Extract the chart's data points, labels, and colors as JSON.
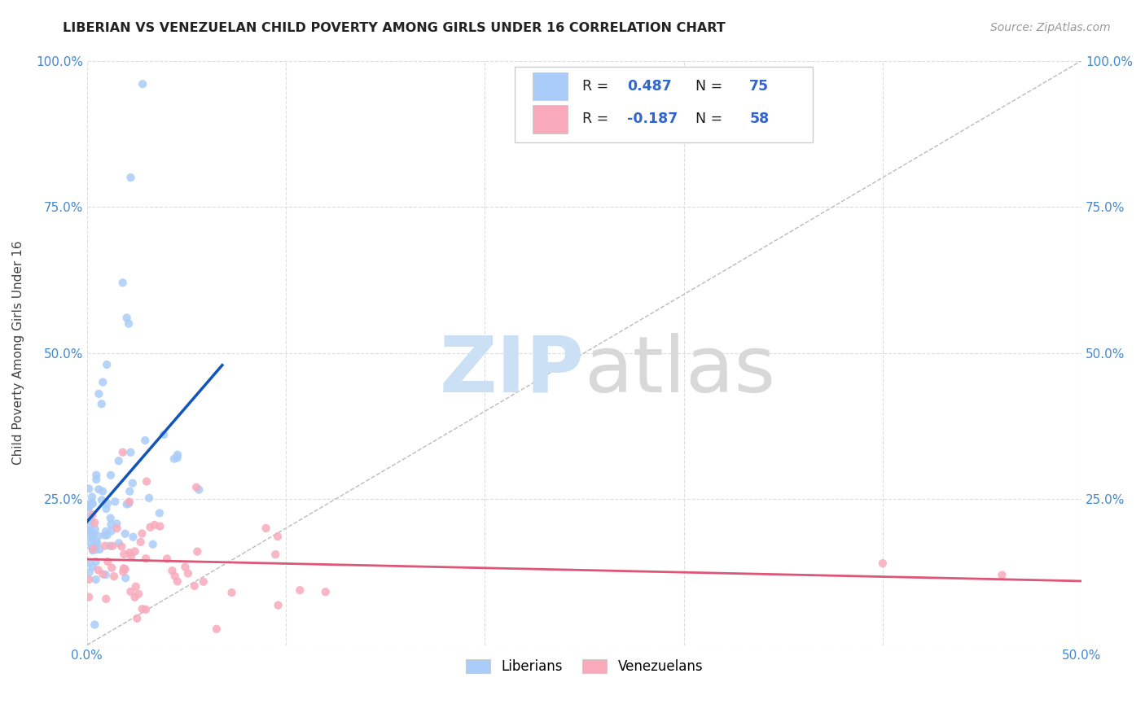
{
  "title": "LIBERIAN VS VENEZUELAN CHILD POVERTY AMONG GIRLS UNDER 16 CORRELATION CHART",
  "source": "Source: ZipAtlas.com",
  "ylabel": "Child Poverty Among Girls Under 16",
  "xlim": [
    0.0,
    0.5
  ],
  "ylim": [
    0.0,
    1.0
  ],
  "liberian_R": 0.487,
  "liberian_N": 75,
  "venezuelan_R": -0.187,
  "venezuelan_N": 58,
  "liberian_color": "#aaccf8",
  "venezuelan_color": "#f8aabb",
  "liberian_line_color": "#1155bb",
  "venezuelan_line_color": "#dd5577",
  "diagonal_color": "#bbbbbb",
  "tick_color": "#4488cc",
  "grid_color": "#dddddd",
  "title_color": "#222222",
  "source_color": "#999999",
  "ylabel_color": "#444444",
  "legend_border_color": "#cccccc",
  "legend_text_color": "#222222",
  "legend_value_color": "#3366cc"
}
